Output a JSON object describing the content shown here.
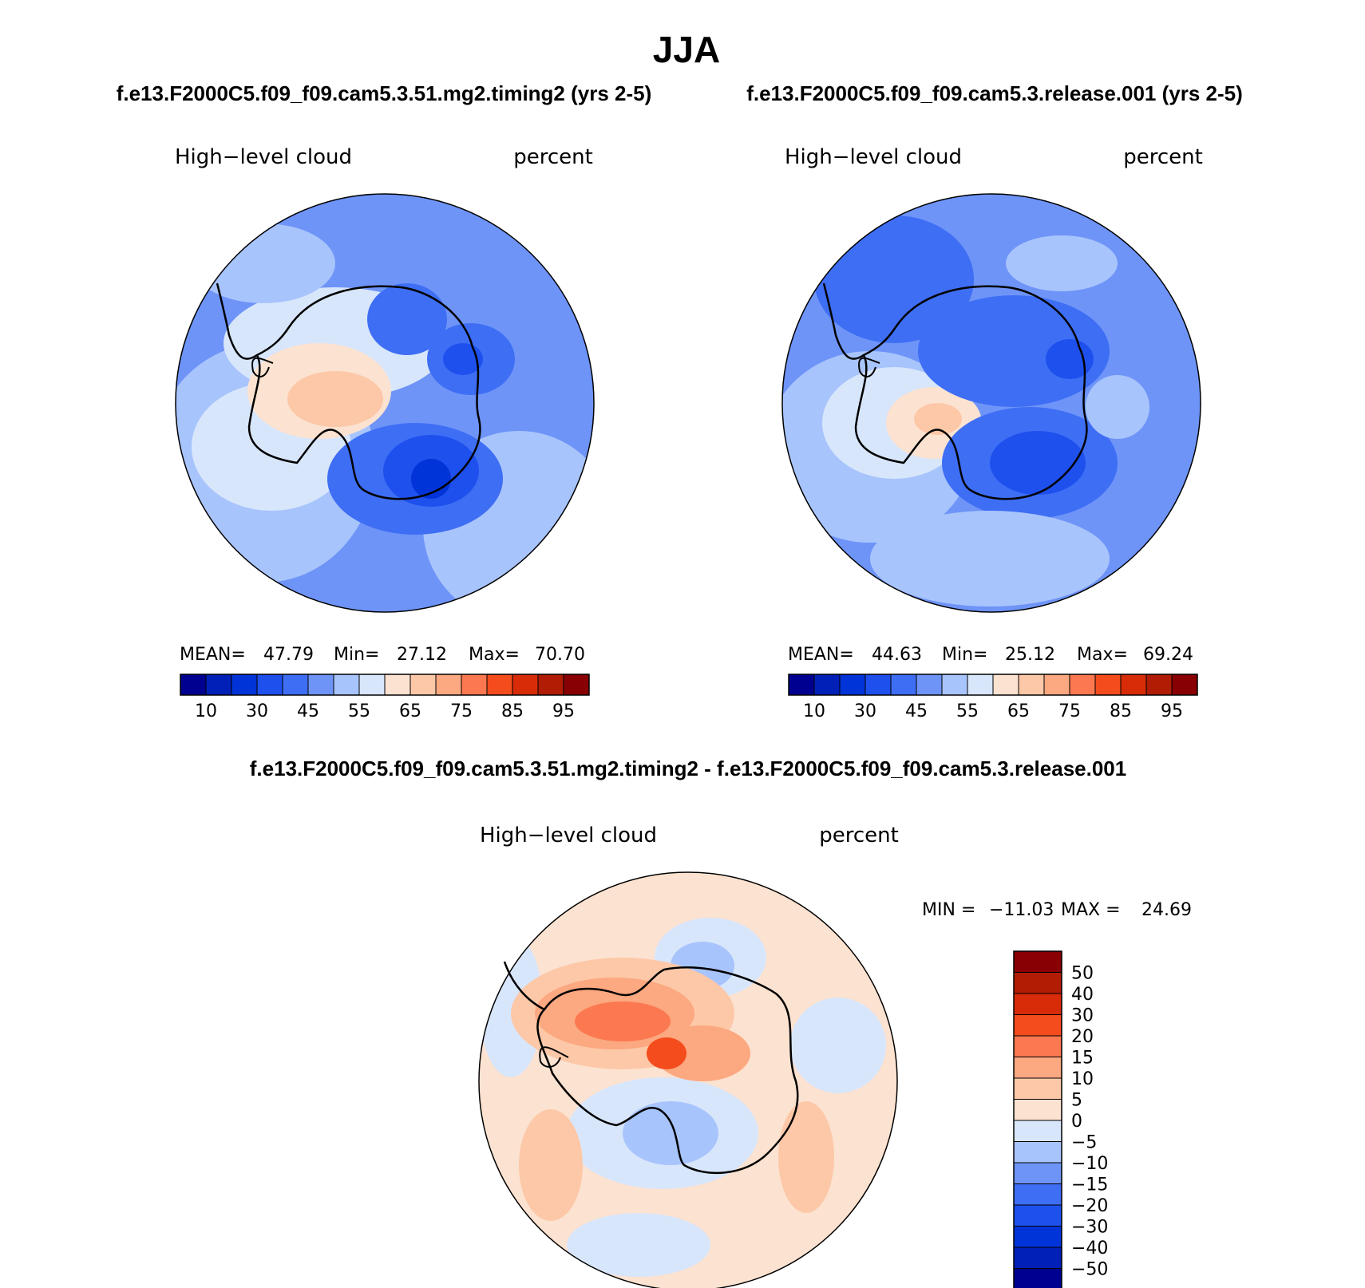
{
  "chart_data": {
    "type": "heatmap",
    "title": "JJA",
    "panels": [
      {
        "id": "model",
        "case_title": "f.e13.F2000C5.f09_f09.cam5.3.51.mg2.timing2 (yrs 2-5)",
        "variable": "High−level cloud",
        "units": "percent",
        "stats": {
          "mean_label": "MEAN=",
          "mean": "47.79",
          "min_label": "Min=",
          "min": "27.12",
          "max_label": "Max=",
          "max": "70.70"
        },
        "contour_levels": [
          5,
          10,
          20,
          30,
          40,
          45,
          50,
          55,
          60,
          65,
          70,
          75,
          80,
          85,
          90,
          95
        ],
        "colorbar_labels": [
          "10",
          "30",
          "45",
          "55",
          "65",
          "75",
          "85",
          "95"
        ]
      },
      {
        "id": "control",
        "case_title": "f.e13.F2000C5.f09_f09.cam5.3.release.001 (yrs 2-5)",
        "variable": "High−level cloud",
        "units": "percent",
        "stats": {
          "mean_label": "MEAN=",
          "mean": "44.63",
          "min_label": "Min=",
          "min": "25.12",
          "max_label": "Max=",
          "max": "69.24"
        },
        "contour_levels": [
          5,
          10,
          20,
          30,
          40,
          45,
          50,
          55,
          60,
          65,
          70,
          75,
          80,
          85,
          90,
          95
        ],
        "colorbar_labels": [
          "10",
          "30",
          "45",
          "55",
          "65",
          "75",
          "85",
          "95"
        ]
      },
      {
        "id": "difference",
        "case_title": "f.e13.F2000C5.f09_f09.cam5.3.51.mg2.timing2 - f.e13.F2000C5.f09_f09.cam5.3.release.001",
        "variable": "High−level cloud",
        "units": "percent",
        "stats": {
          "min_label": "MIN =",
          "min": "−11.03",
          "max_label": "MAX =",
          "max": "24.69"
        },
        "contour_levels": [
          -50,
          -40,
          -30,
          -20,
          -15,
          -10,
          -5,
          0,
          5,
          10,
          15,
          20,
          30,
          40,
          50
        ],
        "colorbar_labels": [
          "50",
          "40",
          "30",
          "20",
          "15",
          "10",
          "5",
          "0",
          "−5",
          "−10",
          "−15",
          "−20",
          "−30",
          "−40",
          "−50"
        ]
      }
    ],
    "projection": "south polar stereographic",
    "legend_position": "below panels (top row), right of panel (difference)"
  },
  "colors": {
    "abs_palette": [
      "#000090",
      "#0020b8",
      "#0034d8",
      "#1e50ee",
      "#3e6ef4",
      "#6e94f8",
      "#a8c4fc",
      "#d8e6fc",
      "#fce2d0",
      "#fcc8a8",
      "#fca880",
      "#fc7850",
      "#f44c1c",
      "#d82c08",
      "#b01c04",
      "#880004"
    ],
    "diff_palette": [
      "#000090",
      "#0020b8",
      "#0034d8",
      "#1e50ee",
      "#3e6ef4",
      "#6e94f8",
      "#a8c4fc",
      "#d8e6fc",
      "#fce2d0",
      "#fcc8a8",
      "#fca880",
      "#fc7850",
      "#f44c1c",
      "#d82c08",
      "#b01c04",
      "#880004"
    ]
  }
}
